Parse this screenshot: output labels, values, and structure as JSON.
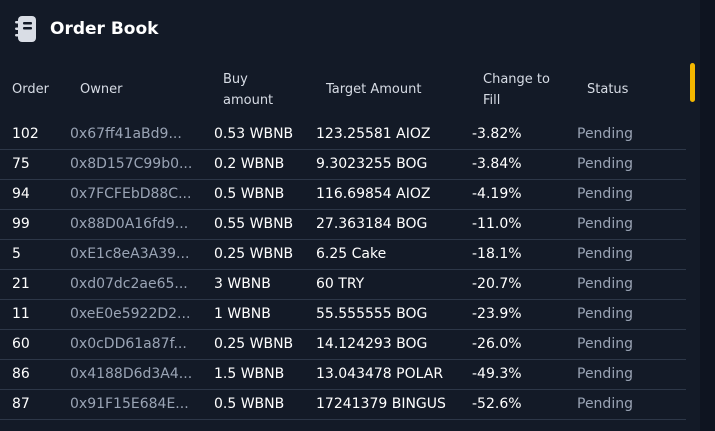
{
  "title": "Order Book",
  "columns": {
    "order": "Order",
    "owner": "Owner",
    "buy_line1": "Buy",
    "buy_line2": "amount",
    "target": "Target Amount",
    "change_line1": "Change to",
    "change_line2": "Fill",
    "status": "Status"
  },
  "rows": [
    {
      "order": "102",
      "owner": "0x67ff41aBd9...",
      "buy": "0.53 WBNB",
      "target": "123.25581 AIOZ",
      "change": "-3.82%",
      "status": "Pending"
    },
    {
      "order": "75",
      "owner": "0x8D157C99b0...",
      "buy": "0.2 WBNB",
      "target": "9.3023255 BOG",
      "change": "-3.84%",
      "status": "Pending"
    },
    {
      "order": "94",
      "owner": "0x7FCFEbD88C...",
      "buy": "0.5 WBNB",
      "target": "116.69854 AIOZ",
      "change": "-4.19%",
      "status": "Pending"
    },
    {
      "order": "99",
      "owner": "0x88D0A16fd9...",
      "buy": "0.55 WBNB",
      "target": "27.363184 BOG",
      "change": "-11.0%",
      "status": "Pending"
    },
    {
      "order": "5",
      "owner": "0xE1c8eA3A39...",
      "buy": "0.25 WBNB",
      "target": "6.25 Cake",
      "change": "-18.1%",
      "status": "Pending"
    },
    {
      "order": "21",
      "owner": "0xd07dc2ae65...",
      "buy": "3 WBNB",
      "target": "60 TRY",
      "change": "-20.7%",
      "status": "Pending"
    },
    {
      "order": "11",
      "owner": "0xeE0e5922D2...",
      "buy": "1 WBNB",
      "target": "55.555555 BOG",
      "change": "-23.9%",
      "status": "Pending"
    },
    {
      "order": "60",
      "owner": "0x0cDD61a87f...",
      "buy": "0.25 WBNB",
      "target": "14.124293 BOG",
      "change": "-26.0%",
      "status": "Pending"
    },
    {
      "order": "86",
      "owner": "0x4188D6d3A4...",
      "buy": "1.5 WBNB",
      "target": "13.043478 POLAR",
      "change": "-49.3%",
      "status": "Pending"
    },
    {
      "order": "87",
      "owner": "0x91F15E684E...",
      "buy": "0.5 WBNB",
      "target": "17241379 BINGUS",
      "change": "-52.6%",
      "status": "Pending"
    }
  ],
  "colors": {
    "background": "#131a27",
    "accent": "#f5b800",
    "muted": "#9aa4b5"
  },
  "icons": {
    "title": "book-icon"
  }
}
